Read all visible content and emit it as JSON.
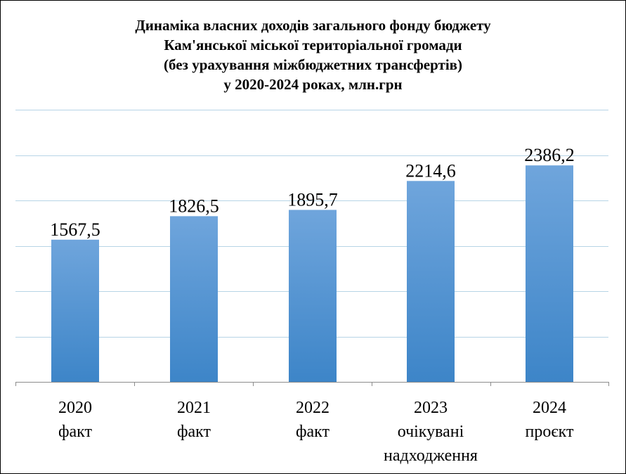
{
  "chart_data": {
    "type": "bar",
    "title_lines": [
      "Динаміка власних доходів загального фонду бюджету",
      "Кам'янської міської територіальної громади",
      "(без урахування міжбюджетних трансфертів)",
      "у 2020-2024 роках, млн.грн"
    ],
    "categories": [
      [
        "2020",
        "факт"
      ],
      [
        "2021",
        "факт"
      ],
      [
        "2022",
        "факт"
      ],
      [
        "2023",
        "очікувані",
        "надходження"
      ],
      [
        "2024",
        "проєкт"
      ]
    ],
    "values": [
      1567.5,
      1826.5,
      1895.7,
      2214.6,
      2386.2
    ],
    "value_labels": [
      "1567,5",
      "1826,5",
      "1895,7",
      "2214,6",
      "2386,2"
    ],
    "ylim": [
      0,
      3000
    ],
    "grid": true,
    "legend": false,
    "bar_color": "#5b9bd5"
  }
}
